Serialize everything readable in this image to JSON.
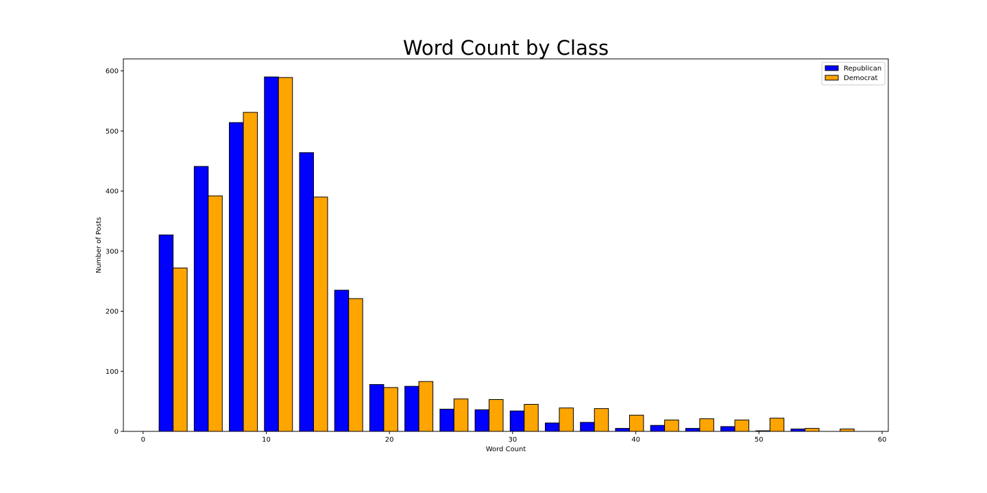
{
  "chart_data": {
    "type": "bar",
    "title": "Word Count by Class",
    "xlabel": "Word Count",
    "ylabel": "Number of Posts",
    "xlim": [
      -1.6,
      60.5
    ],
    "ylim": [
      0,
      620
    ],
    "xticks": [
      0,
      10,
      20,
      30,
      40,
      50,
      60
    ],
    "yticks": [
      0,
      100,
      200,
      300,
      400,
      500,
      600
    ],
    "bin_starts": [
      1.3,
      4.15,
      7.0,
      9.85,
      12.7,
      15.55,
      18.4,
      21.25,
      24.1,
      26.95,
      29.8,
      32.65,
      35.5,
      38.35,
      41.2,
      44.05,
      46.9,
      49.75,
      52.6,
      55.45
    ],
    "bar_width": 1.14,
    "legend_position": "top-right",
    "series": [
      {
        "name": "Republican",
        "color": "#0000ff",
        "values": [
          327,
          441,
          514,
          590,
          464,
          235,
          78,
          75,
          37,
          36,
          34,
          14,
          15,
          5,
          10,
          5,
          8,
          1,
          4,
          0
        ]
      },
      {
        "name": "Democrat",
        "color": "#ffa500",
        "values": [
          272,
          392,
          531,
          589,
          390,
          221,
          73,
          83,
          54,
          53,
          45,
          39,
          38,
          27,
          19,
          21,
          19,
          22,
          5,
          4
        ]
      }
    ]
  }
}
